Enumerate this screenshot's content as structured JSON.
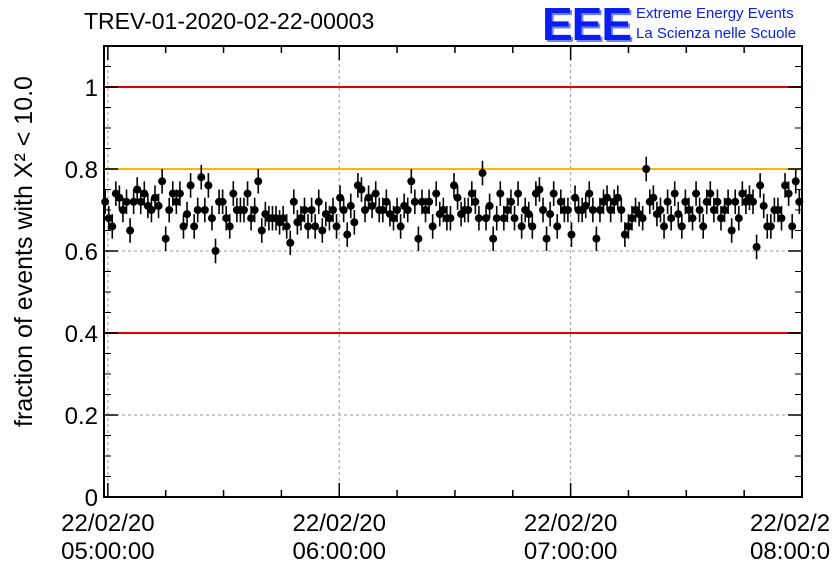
{
  "title": "TREV-01-2020-02-22-00003",
  "logo": {
    "mark": "EEE",
    "line1": "Extreme Energy Events",
    "line2": "La Scienza nelle Scuole",
    "color": "#0a1ef0"
  },
  "chart_data": {
    "type": "scatter",
    "ylabel": "fraction of events with X² < 10.0",
    "ylim": [
      0,
      1.1
    ],
    "yticks": [
      0,
      0.2,
      0.4,
      0.6,
      0.8,
      1
    ],
    "ytick_labels": [
      "0",
      "0.2",
      "0.4",
      "0.6",
      "0.8",
      "1"
    ],
    "xlim": [
      "2020-02-22 04:59",
      "2020-02-22 08:00"
    ],
    "xticks": [
      {
        "date": "22/02/20",
        "time": "05:00:00"
      },
      {
        "date": "22/02/20",
        "time": "06:00:00"
      },
      {
        "date": "22/02/20",
        "time": "07:00:00"
      },
      {
        "date": "22/02/2",
        "time": "08:00:0"
      }
    ],
    "grid": true,
    "reference_lines": [
      {
        "y": 1.0,
        "color": "#e00000"
      },
      {
        "y": 0.8,
        "color": "#ffb400"
      },
      {
        "y": 0.4,
        "color": "#e00000"
      }
    ],
    "marker_color": "#000000",
    "error_bar": 0.03,
    "series": [
      {
        "values": [
          0.72,
          0.68,
          0.66,
          0.74,
          0.73,
          0.7,
          0.72,
          0.65,
          0.72,
          0.75,
          0.72,
          0.74,
          0.71,
          0.7,
          0.73,
          0.71,
          0.77,
          0.63,
          0.7,
          0.74,
          0.72,
          0.74,
          0.66,
          0.69,
          0.76,
          0.66,
          0.7,
          0.78,
          0.7,
          0.76,
          0.68,
          0.6,
          0.72,
          0.72,
          0.68,
          0.66,
          0.74,
          0.7,
          0.7,
          0.7,
          0.74,
          0.68,
          0.7,
          0.77,
          0.65,
          0.69,
          0.68,
          0.68,
          0.68,
          0.67,
          0.68,
          0.66,
          0.62,
          0.72,
          0.67,
          0.68,
          0.7,
          0.66,
          0.7,
          0.66,
          0.72,
          0.65,
          0.69,
          0.68,
          0.7,
          0.66,
          0.73,
          0.7,
          0.64,
          0.71,
          0.67,
          0.76,
          0.75,
          0.7,
          0.73,
          0.71,
          0.74,
          0.7,
          0.7,
          0.72,
          0.69,
          0.68,
          0.7,
          0.66,
          0.71,
          0.7,
          0.77,
          0.72,
          0.63,
          0.72,
          0.7,
          0.72,
          0.66,
          0.74,
          0.69,
          0.7,
          0.68,
          0.68,
          0.76,
          0.73,
          0.69,
          0.7,
          0.7,
          0.74,
          0.72,
          0.68,
          0.79,
          0.68,
          0.71,
          0.63,
          0.68,
          0.74,
          0.68,
          0.7,
          0.72,
          0.68,
          0.74,
          0.66,
          0.7,
          0.69,
          0.66,
          0.74,
          0.75,
          0.7,
          0.63,
          0.69,
          0.74,
          0.66,
          0.72,
          0.7,
          0.7,
          0.64,
          0.73,
          0.7,
          0.7,
          0.71,
          0.74,
          0.7,
          0.63,
          0.7,
          0.72,
          0.73,
          0.7,
          0.72,
          0.73,
          0.7,
          0.64,
          0.66,
          0.68,
          0.7,
          0.69,
          0.68,
          0.8,
          0.72,
          0.73,
          0.69,
          0.7,
          0.66,
          0.72,
          0.68,
          0.74,
          0.69,
          0.66,
          0.72,
          0.7,
          0.68,
          0.74,
          0.7,
          0.66,
          0.72,
          0.74,
          0.7,
          0.72,
          0.68,
          0.7,
          0.72,
          0.65,
          0.72,
          0.68,
          0.74,
          0.72,
          0.73,
          0.72,
          0.61,
          0.76,
          0.71,
          0.66,
          0.66,
          0.7,
          0.7,
          0.68,
          0.76,
          0.74,
          0.66,
          0.77,
          0.72
        ]
      }
    ]
  }
}
